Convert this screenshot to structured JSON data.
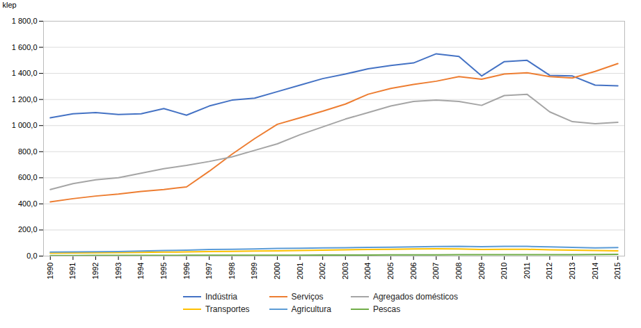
{
  "chart_data": {
    "type": "line",
    "x": [
      1990,
      1991,
      1992,
      1993,
      1994,
      1995,
      1996,
      1997,
      1998,
      1999,
      2000,
      2001,
      2002,
      2003,
      2004,
      2005,
      2006,
      2007,
      2008,
      2009,
      2010,
      2011,
      2012,
      2013,
      2014,
      2015
    ],
    "xlim": [
      1989.7,
      2015.3
    ],
    "xticks": [
      1990,
      1991,
      1992,
      1993,
      1994,
      1995,
      1996,
      1997,
      1998,
      1999,
      2000,
      2001,
      2002,
      2003,
      2004,
      2005,
      2006,
      2007,
      2008,
      2009,
      2010,
      2011,
      2012,
      2013,
      2014,
      2015
    ],
    "ylim": [
      0,
      1800
    ],
    "yticks": [
      {
        "value": 0,
        "label": "0,0"
      },
      {
        "value": 200,
        "label": "200,0"
      },
      {
        "value": 400,
        "label": "400,0"
      },
      {
        "value": 600,
        "label": "600,0"
      },
      {
        "value": 800,
        "label": "800,0"
      },
      {
        "value": 1000,
        "label": "1 000,0"
      },
      {
        "value": 1200,
        "label": "1 200,0"
      },
      {
        "value": 1400,
        "label": "1 400,0"
      },
      {
        "value": 1600,
        "label": "1 600,0"
      },
      {
        "value": 1800,
        "label": "1 800,0"
      }
    ],
    "ylabel": "klep",
    "grid": true,
    "legend": "bottom",
    "series": [
      {
        "name": "Indústria",
        "color": "#4472C4",
        "values": [
          1060,
          1090,
          1100,
          1085,
          1090,
          1130,
          1080,
          1150,
          1195,
          1210,
          1260,
          1310,
          1360,
          1395,
          1435,
          1460,
          1480,
          1550,
          1530,
          1380,
          1490,
          1500,
          1385,
          1380,
          1310,
          1305
        ]
      },
      {
        "name": "Serviços",
        "color": "#ED7D31",
        "values": [
          415,
          440,
          460,
          475,
          495,
          510,
          530,
          650,
          780,
          900,
          1010,
          1060,
          1110,
          1165,
          1240,
          1285,
          1315,
          1340,
          1375,
          1355,
          1395,
          1405,
          1375,
          1365,
          1415,
          1475
        ]
      },
      {
        "name": "Agregados domésticos",
        "color": "#A5A5A5",
        "values": [
          510,
          555,
          585,
          600,
          635,
          670,
          695,
          725,
          760,
          810,
          860,
          930,
          990,
          1050,
          1100,
          1150,
          1185,
          1195,
          1185,
          1155,
          1230,
          1240,
          1105,
          1030,
          1015,
          1025
        ]
      },
      {
        "name": "Transportes",
        "color": "#FFC000",
        "values": [
          22,
          24,
          25,
          26,
          28,
          30,
          32,
          34,
          36,
          38,
          40,
          42,
          45,
          48,
          50,
          52,
          54,
          56,
          55,
          50,
          52,
          52,
          48,
          45,
          42,
          40
        ]
      },
      {
        "name": "Agricultura",
        "color": "#5B9BD5",
        "values": [
          30,
          32,
          33,
          35,
          38,
          42,
          45,
          50,
          52,
          55,
          58,
          60,
          62,
          64,
          66,
          68,
          70,
          73,
          75,
          72,
          74,
          74,
          70,
          66,
          62,
          65
        ]
      },
      {
        "name": "Pescas",
        "color": "#70AD47",
        "values": [
          4,
          4,
          5,
          5,
          5,
          5,
          6,
          6,
          6,
          7,
          7,
          7,
          8,
          8,
          8,
          9,
          9,
          9,
          10,
          10,
          10,
          10,
          10,
          11,
          12,
          13
        ]
      }
    ]
  }
}
